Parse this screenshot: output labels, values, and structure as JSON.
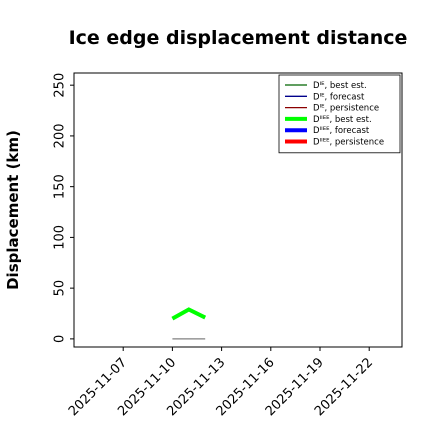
{
  "chart_data": {
    "type": "line",
    "title": "Ice edge displacement distance",
    "ylabel": "Displacement (km)",
    "xlabel": "",
    "x_tick_labels": [
      "2025-11-07",
      "2025-11-10",
      "2025-11-13",
      "2025-11-16",
      "2025-11-19",
      "2025-11-22"
    ],
    "highlight_tick": "2025-11-13",
    "highlight_color": "#228b22",
    "y_ticks": [
      0,
      50,
      100,
      150,
      200,
      250
    ],
    "xlim": [
      "2025-11-04",
      "2025-11-24"
    ],
    "ylim": [
      -8,
      262
    ],
    "legend_position": "upper right",
    "grid": false,
    "series": [
      {
        "name": "Dᴵᴱ, best est.",
        "color": "#006400",
        "width": 1.3,
        "x": [],
        "y": []
      },
      {
        "name": "Dᴵᴱ, forecast",
        "color": "#00008b",
        "width": 1.3,
        "x": [],
        "y": []
      },
      {
        "name": "Dᴵᴱ, persistence",
        "color": "#8b0000",
        "width": 1.3,
        "x": [],
        "y": []
      },
      {
        "name": "Dᴵᴵᴱᴱ, best est.",
        "color": "#00ff00",
        "width": 4,
        "x": [
          "2025-11-10",
          "2025-11-11",
          "2025-11-12"
        ],
        "y": [
          20,
          29,
          21
        ]
      },
      {
        "name": "Dᴵᴵᴱᴱ, forecast",
        "color": "#0000ff",
        "width": 4,
        "x": [],
        "y": []
      },
      {
        "name": "Dᴵᴵᴱᴱ, persistence",
        "color": "#ff0000",
        "width": 4,
        "x": [],
        "y": []
      },
      {
        "name": "",
        "color": "#808080",
        "width": 1.3,
        "x": [
          "2025-11-10",
          "2025-11-12"
        ],
        "y": [
          0,
          0
        ]
      }
    ]
  }
}
